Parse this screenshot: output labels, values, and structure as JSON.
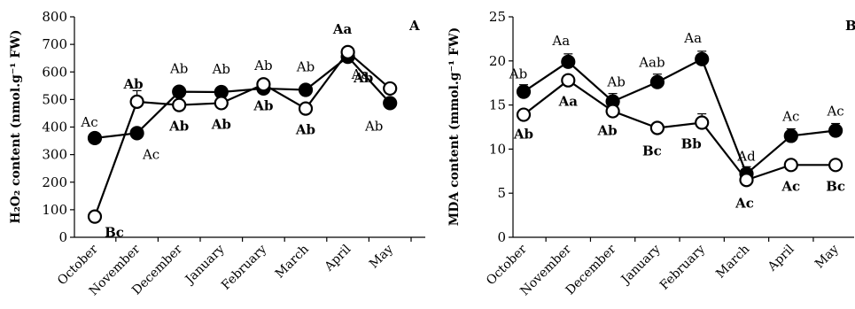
{
  "chart_data": [
    {
      "type": "line",
      "panel_letter": "A",
      "ylabel": "H₂O₂ content (nmol.g⁻¹ FW)",
      "ylim": [
        0,
        800
      ],
      "yticks": [
        0,
        100,
        200,
        300,
        400,
        500,
        600,
        700,
        800
      ],
      "categories": [
        "October",
        "November",
        "December",
        "January",
        "February",
        "March",
        "April",
        "May"
      ],
      "series": [
        {
          "marker": "filled",
          "values": [
            360,
            378,
            528,
            527,
            540,
            535,
            655,
            487
          ],
          "errors": [
            0,
            0,
            0,
            0,
            0,
            0,
            0,
            0
          ],
          "letters": [
            "Ac",
            "Ac",
            "Ab",
            "Ab",
            "Ab",
            "Ab",
            "Aa",
            "Ab"
          ]
        },
        {
          "marker": "open",
          "values": [
            75,
            492,
            480,
            487,
            555,
            467,
            672,
            540
          ],
          "errors": [
            0,
            40,
            0,
            0,
            0,
            0,
            0,
            0
          ],
          "letters": [
            "Bc",
            "Ab",
            "Ab",
            "Ab",
            "Ab",
            "Ab",
            "Aa",
            "Ab"
          ]
        }
      ]
    },
    {
      "type": "line",
      "panel_letter": "B",
      "ylabel": "MDA content (mmol.g⁻¹ FW)",
      "ylim": [
        0,
        25
      ],
      "yticks": [
        0,
        5,
        10,
        15,
        20,
        25
      ],
      "categories": [
        "October",
        "November",
        "December",
        "January",
        "February",
        "March",
        "April",
        "May"
      ],
      "series": [
        {
          "marker": "filled",
          "values": [
            16.5,
            19.9,
            15.4,
            17.6,
            20.2,
            7.2,
            11.5,
            12.1
          ],
          "errors": [
            0.8,
            0.9,
            0.9,
            0.9,
            0.9,
            0.8,
            0.8,
            0.8
          ],
          "letters": [
            "Ab",
            "Aa",
            "Ab",
            "Aab",
            "Aa",
            "Ad",
            "Ac",
            "Ac"
          ]
        },
        {
          "marker": "open",
          "values": [
            13.9,
            17.8,
            14.3,
            12.4,
            13.0,
            6.5,
            8.2,
            8.2
          ],
          "errors": [
            0,
            0,
            0,
            0,
            1.0,
            0,
            0,
            0
          ],
          "letters": [
            "Ab",
            "Aa",
            "Ab",
            "Bc",
            "Bb",
            "Ac",
            "Ac",
            "Bc"
          ]
        }
      ]
    }
  ]
}
